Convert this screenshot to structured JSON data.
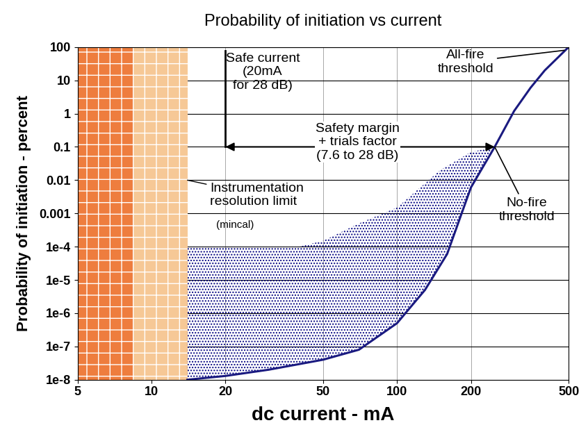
{
  "chart_data": {
    "type": "line",
    "title": "Probability of initiation vs current",
    "x_label": "dc current - mA",
    "y_label": "Probability of initiation - percent",
    "log": true,
    "grid": true,
    "color": "#1a1a80",
    "x": [
      14,
      20,
      30,
      50,
      70,
      100,
      130,
      160,
      200,
      250,
      300,
      350,
      400,
      500
    ],
    "values": [
      1e-08,
      1.3e-08,
      2e-08,
      4e-08,
      8e-08,
      5e-07,
      5e-06,
      6e-05,
      0.006,
      0.1,
      1.2,
      6,
      20,
      100
    ],
    "region": {
      "x": [
        14,
        40,
        50,
        70,
        100,
        150,
        200,
        250
      ],
      "upper": [
        0.0001,
        0.0001,
        0.00015,
        0.0005,
        0.0015,
        0.02,
        0.07,
        0.1
      ],
      "color": "#000080"
    },
    "xlim": [
      5,
      500
    ],
    "ylim": [
      1e-08,
      100
    ],
    "xticks": [
      5,
      10,
      20,
      50,
      100,
      200,
      500
    ],
    "yticks": [
      {
        "value": 1e-08,
        "label": "1e-8"
      },
      {
        "value": 1e-07,
        "label": "1e-7"
      },
      {
        "value": 1e-06,
        "label": "1e-6"
      },
      {
        "value": 1e-05,
        "label": "1e-5"
      },
      {
        "value": 0.0001,
        "label": "1e-4"
      },
      0.001,
      0.01,
      0.1,
      1,
      10,
      100
    ],
    "annotations": [
      {
        "text": "Safe current\n(20mA\nfor 28 dB)",
        "x": 20
      },
      {
        "text": "Safety margin\n+ trials factor\n(7.6 to 28 dB)",
        "x": [
          20,
          250
        ],
        "y": 0.1
      },
      {
        "text": "Instrumentation\nresolution limit",
        "x": 14
      },
      {
        "text": "(mincal)"
      },
      {
        "text": "All-fire\nthreshold",
        "x": 480,
        "y": 80
      },
      {
        "text": "No-fire\nthreshold",
        "x": 250,
        "y": 0.1
      }
    ]
  }
}
